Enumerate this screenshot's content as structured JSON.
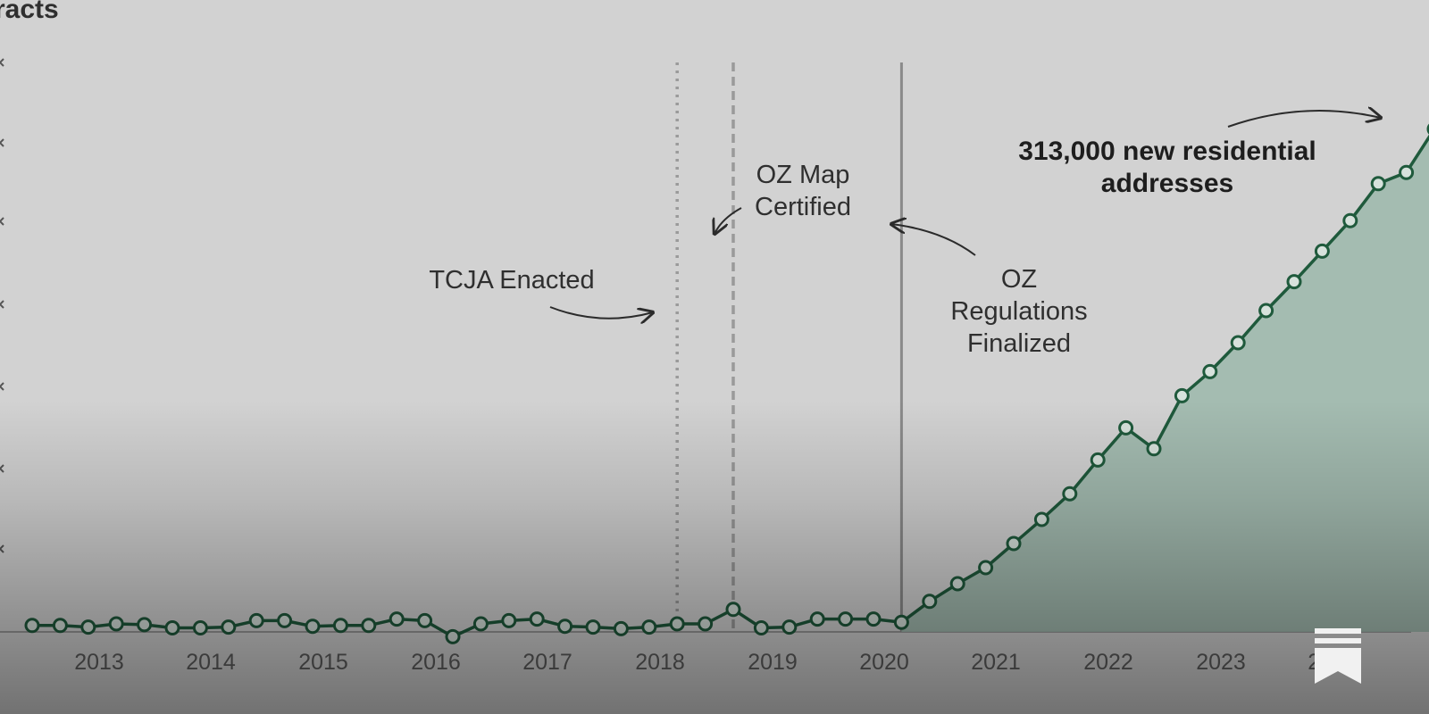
{
  "colors": {
    "background": "#d2d2d2",
    "series_line": "#1f5a3c",
    "area_fill": "#9fb9ad",
    "marker_fill": "#d7e2dc"
  },
  "icons": {
    "corner": "bookmark-icon"
  },
  "chart_data": {
    "type": "area",
    "title": "racts",
    "x_start": "2012-03",
    "x_step_months": 3,
    "x_tick_labels": [
      "2013",
      "2014",
      "2015",
      "2016",
      "2017",
      "2018",
      "2019",
      "2020",
      "2021",
      "2022",
      "2023",
      "2024"
    ],
    "ylim": [
      0,
      340000
    ],
    "grid": false,
    "legend": "none",
    "series": [
      {
        "values": [
          4000,
          4000,
          3000,
          5000,
          4500,
          2500,
          2500,
          3000,
          7000,
          7000,
          3500,
          4000,
          4000,
          8000,
          7000,
          -3000,
          5000,
          7000,
          8000,
          3500,
          3000,
          2000,
          3000,
          5000,
          5000,
          14000,
          2500,
          3000,
          8000,
          8000,
          8000,
          6000,
          19000,
          30000,
          40000,
          55000,
          70000,
          86000,
          107000,
          127000,
          114000,
          147000,
          162000,
          180000,
          200000,
          218000,
          237000,
          256000,
          279000,
          286000,
          313000
        ]
      }
    ],
    "annotations": [
      {
        "id": "tcja",
        "date": "2017-12",
        "style": "dotted",
        "label_lines": [
          "TCJA Enacted"
        ]
      },
      {
        "id": "ozmap",
        "date": "2018-06",
        "style": "dashed",
        "label_lines": [
          "OZ Map",
          "Certified"
        ]
      },
      {
        "id": "ozregs",
        "date": "2019-12",
        "style": "solid",
        "label_lines": [
          "OZ",
          "Regulations",
          "Finalized"
        ]
      },
      {
        "id": "peak",
        "label_lines": [
          "313,000 new residential",
          "addresses"
        ]
      }
    ]
  }
}
